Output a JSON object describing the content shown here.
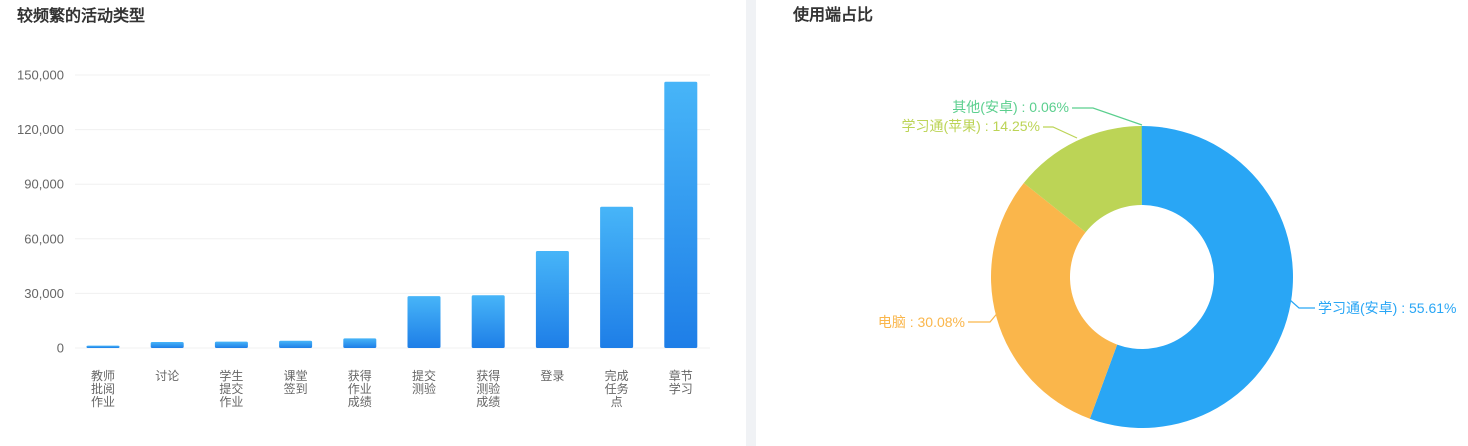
{
  "left_panel": {
    "title": "较频繁的活动类型"
  },
  "right_panel": {
    "title": "使用端占比"
  },
  "chart_data": [
    {
      "type": "bar",
      "title": "较频繁的活动类型",
      "categories": [
        "教师批阅作业",
        "讨论",
        "学生提交作业",
        "课堂签到",
        "获得作业成绩",
        "提交测验",
        "获得测验成绩",
        "登录",
        "完成任务点",
        "章节学习"
      ],
      "category_lines": [
        [
          "教师",
          "批阅",
          "作业"
        ],
        [
          "讨论"
        ],
        [
          "学生",
          "提交",
          "作业"
        ],
        [
          "课堂",
          "签到"
        ],
        [
          "获得",
          "作业",
          "成绩"
        ],
        [
          "提交",
          "测验"
        ],
        [
          "获得",
          "测验",
          "成绩"
        ],
        [
          "登录"
        ],
        [
          "完成",
          "任务",
          "点"
        ],
        [
          "章节",
          "学习"
        ]
      ],
      "values": [
        1300,
        3300,
        3500,
        4000,
        5300,
        28500,
        29000,
        53300,
        77600,
        146300
      ],
      "xlabel": "",
      "ylabel": "",
      "ylim": [
        0,
        150000
      ],
      "ytick_interval": 30000,
      "ytick_labels": [
        "0",
        "30,000",
        "60,000",
        "90,000",
        "120,000",
        "150,000"
      ],
      "grid": true,
      "gridline_color": "#f0f0f0",
      "axis_label_color": "#666666",
      "bar_gradient_top": "#47b5f8",
      "bar_gradient_bottom": "#1e7ee7"
    },
    {
      "type": "pie",
      "title": "使用端占比",
      "donut": true,
      "legend_position": "outside-labels",
      "slices": [
        {
          "label": "学习通(安卓)",
          "value": 55.61,
          "display": "学习通(安卓) : 55.61%",
          "color": "#29a6f5"
        },
        {
          "label": "电脑",
          "value": 30.08,
          "display": "电脑 : 30.08%",
          "color": "#fab64b"
        },
        {
          "label": "学习通(苹果)",
          "value": 14.25,
          "display": "学习通(苹果) : 14.25%",
          "color": "#bcd456"
        },
        {
          "label": "其他(安卓)",
          "value": 0.06,
          "display": "其他(安卓) : 0.06%",
          "color": "#5bcf8e"
        }
      ]
    }
  ]
}
